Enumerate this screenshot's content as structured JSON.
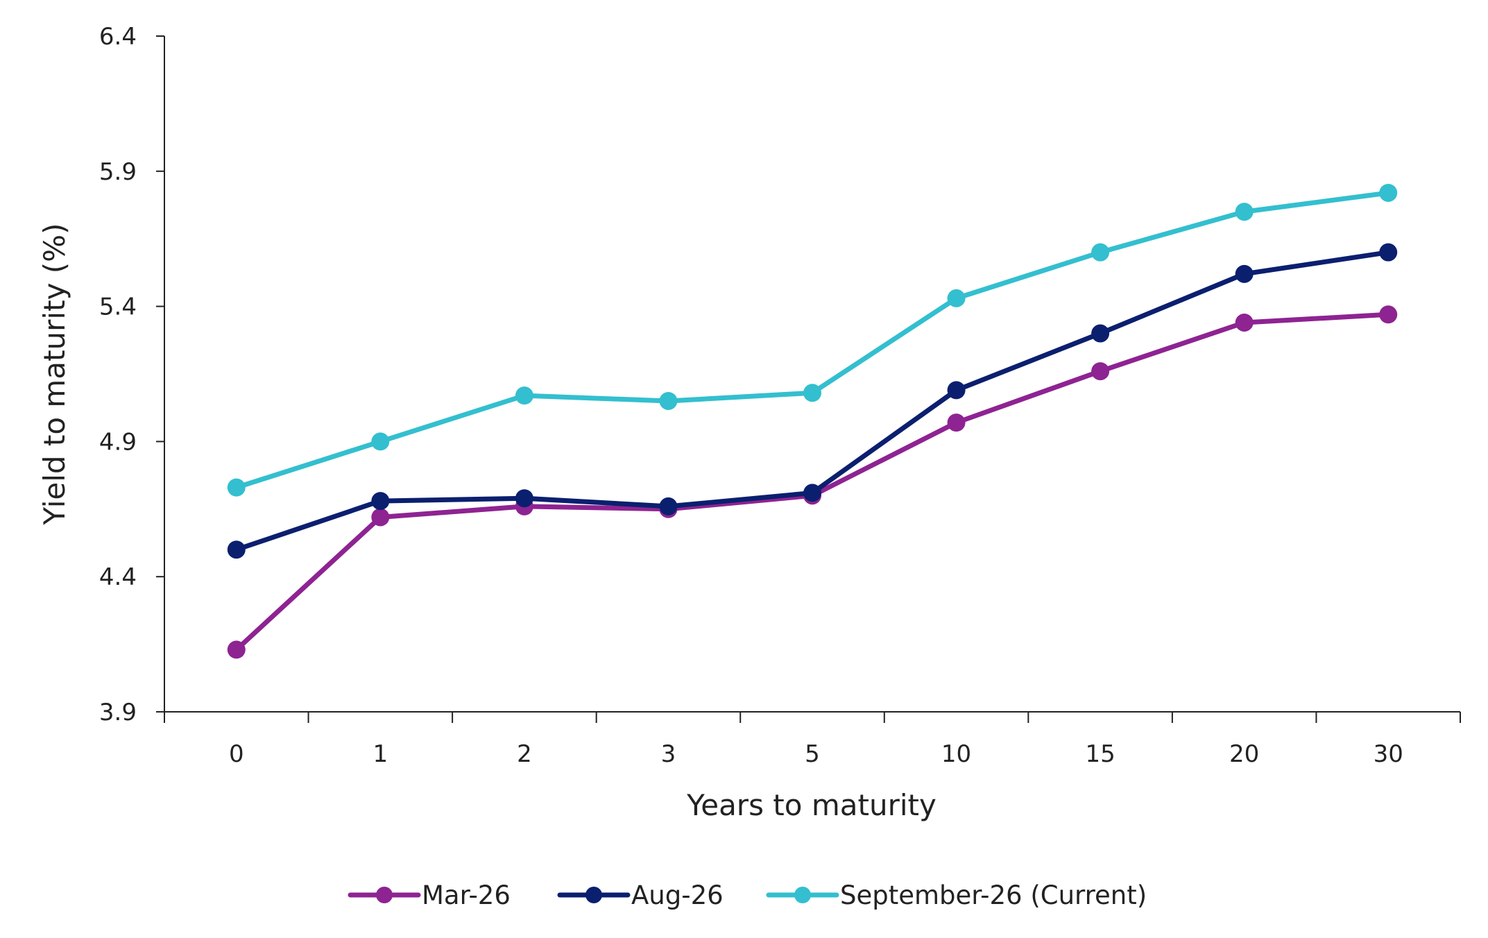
{
  "chart_data": {
    "type": "line",
    "title": "",
    "xlabel": "Years to maturity",
    "ylabel": "Yield to maturity (%)",
    "categories": [
      "0",
      "1",
      "2",
      "3",
      "5",
      "10",
      "15",
      "20",
      "30"
    ],
    "ylim": [
      3.9,
      6.4
    ],
    "yticks": [
      "3.9",
      "4.4",
      "4.9",
      "5.4",
      "5.9",
      "6.4"
    ],
    "grid": false,
    "legend_position": "bottom",
    "series": [
      {
        "name": "Mar-26",
        "color": "#8E2392",
        "values": [
          4.13,
          4.62,
          4.66,
          4.65,
          4.7,
          4.97,
          5.16,
          5.34,
          5.37
        ]
      },
      {
        "name": "Aug-26",
        "color": "#0B1F6F",
        "values": [
          4.5,
          4.68,
          4.69,
          4.66,
          4.71,
          5.09,
          5.3,
          5.52,
          5.6
        ]
      },
      {
        "name": "September-26 (Current)",
        "color": "#33BFCF",
        "values": [
          4.73,
          4.9,
          5.07,
          5.05,
          5.08,
          5.43,
          5.6,
          5.75,
          5.82
        ]
      }
    ]
  }
}
